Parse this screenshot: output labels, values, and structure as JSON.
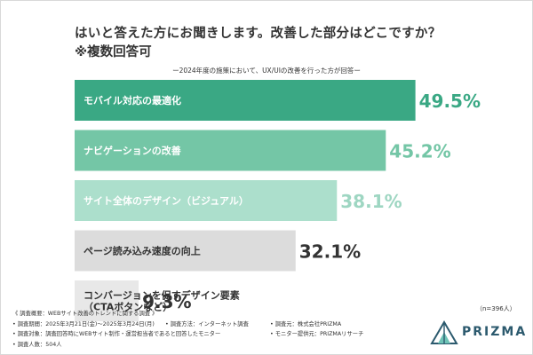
{
  "header": {
    "title": "はいと答えた方にお聞きします。改善した部分はどこですか？",
    "subtitle": "※複数回答可",
    "caption": "ー2024年度の施策において、UX/UIの改善を行った方が回答ー"
  },
  "chart_data": {
    "type": "bar",
    "orientation": "horizontal",
    "categories": [
      [
        "モバイル対応の最適化"
      ],
      [
        "ナビゲーションの改善"
      ],
      [
        "サイト全体のデザイン（ビジュアル）"
      ],
      [
        "ページ読み込み速度の向上"
      ],
      [
        "コンバージョンを促すデザイン要素",
        "（CTAボタンなど）"
      ]
    ],
    "values": [
      49.5,
      45.2,
      38.1,
      32.1,
      9.3
    ],
    "value_labels": [
      "49.5%",
      "45.2%",
      "38.1%",
      "32.1%",
      "9.3%"
    ],
    "unit": "%",
    "grid": false,
    "legend": "none",
    "colors": {
      "bars": [
        "#3aa884",
        "#74c6a6",
        "#acdfcc",
        "#dcdcdc",
        "#e8e8e8"
      ],
      "labels": [
        "#ffffff",
        "#ffffff",
        "#ffffff",
        "#333333",
        "#333333"
      ],
      "values": [
        "#3aa884",
        "#74c6a6",
        "#9ed6c2",
        "#333333",
        "#333333"
      ]
    }
  },
  "sample_size": "（n=396人）",
  "notes": {
    "survey_overview": "《 調査概要：WEBサイト改善のトレンドに関する調査 》",
    "period": "• 調査期間：2025年3月21日(金)～2025年3月24日(月)",
    "method": "• 調査方法：インターネット調査",
    "organizer": "• 調査元：株式会社PRIZMA",
    "target": "• 調査対象：調査回答時にWEBサイト制作・運営担当者であると回答したモニター",
    "provider": "• モニター提供元：PRIZMAリサーチ",
    "respondents": "• 調査人数：504人"
  },
  "logo": {
    "text": "PRIZMA",
    "color": "#2c5a6e"
  }
}
